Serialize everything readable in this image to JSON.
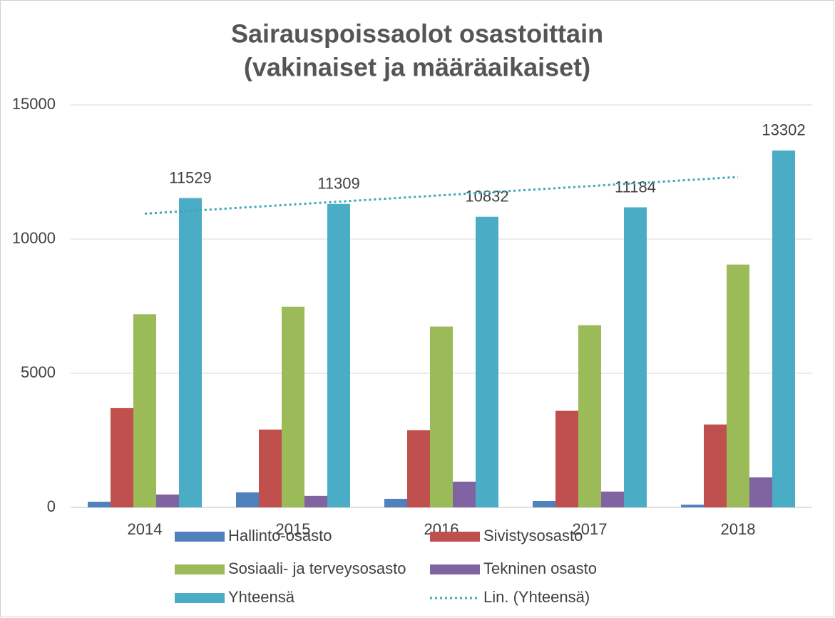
{
  "chart_data": {
    "type": "bar",
    "title": [
      "Sairauspoissaolot osastoittain",
      "(vakinaiset ja määräaikaiset)"
    ],
    "categories": [
      "2014",
      "2015",
      "2016",
      "2017",
      "2018"
    ],
    "series": [
      {
        "name": "Hallinto-osasto",
        "color": "#4f81bd",
        "values": [
          210,
          560,
          320,
          240,
          100
        ]
      },
      {
        "name": "Sivistysosasto",
        "color": "#c0504d",
        "values": [
          3700,
          2900,
          2875,
          3600,
          3090
        ]
      },
      {
        "name": "Sosiaali- ja terveysosasto",
        "color": "#9bbb59",
        "values": [
          7200,
          7480,
          6740,
          6790,
          9050
        ]
      },
      {
        "name": "Tekninen osasto",
        "color": "#8064a2",
        "values": [
          480,
          430,
          960,
          590,
          1120
        ]
      },
      {
        "name": "Yhteensä",
        "color": "#4bacc6",
        "values": [
          11529,
          11309,
          10832,
          11184,
          13302
        ],
        "data_labels": true
      }
    ],
    "trendline": {
      "name": "Lin. (Yhteensä)",
      "color": "#3aa8b4",
      "of_series": 4,
      "kind": "linear"
    },
    "ylim": [
      0,
      15000
    ],
    "yticks": [
      0,
      5000,
      10000,
      15000
    ],
    "grid": true,
    "legend": "bottom"
  }
}
